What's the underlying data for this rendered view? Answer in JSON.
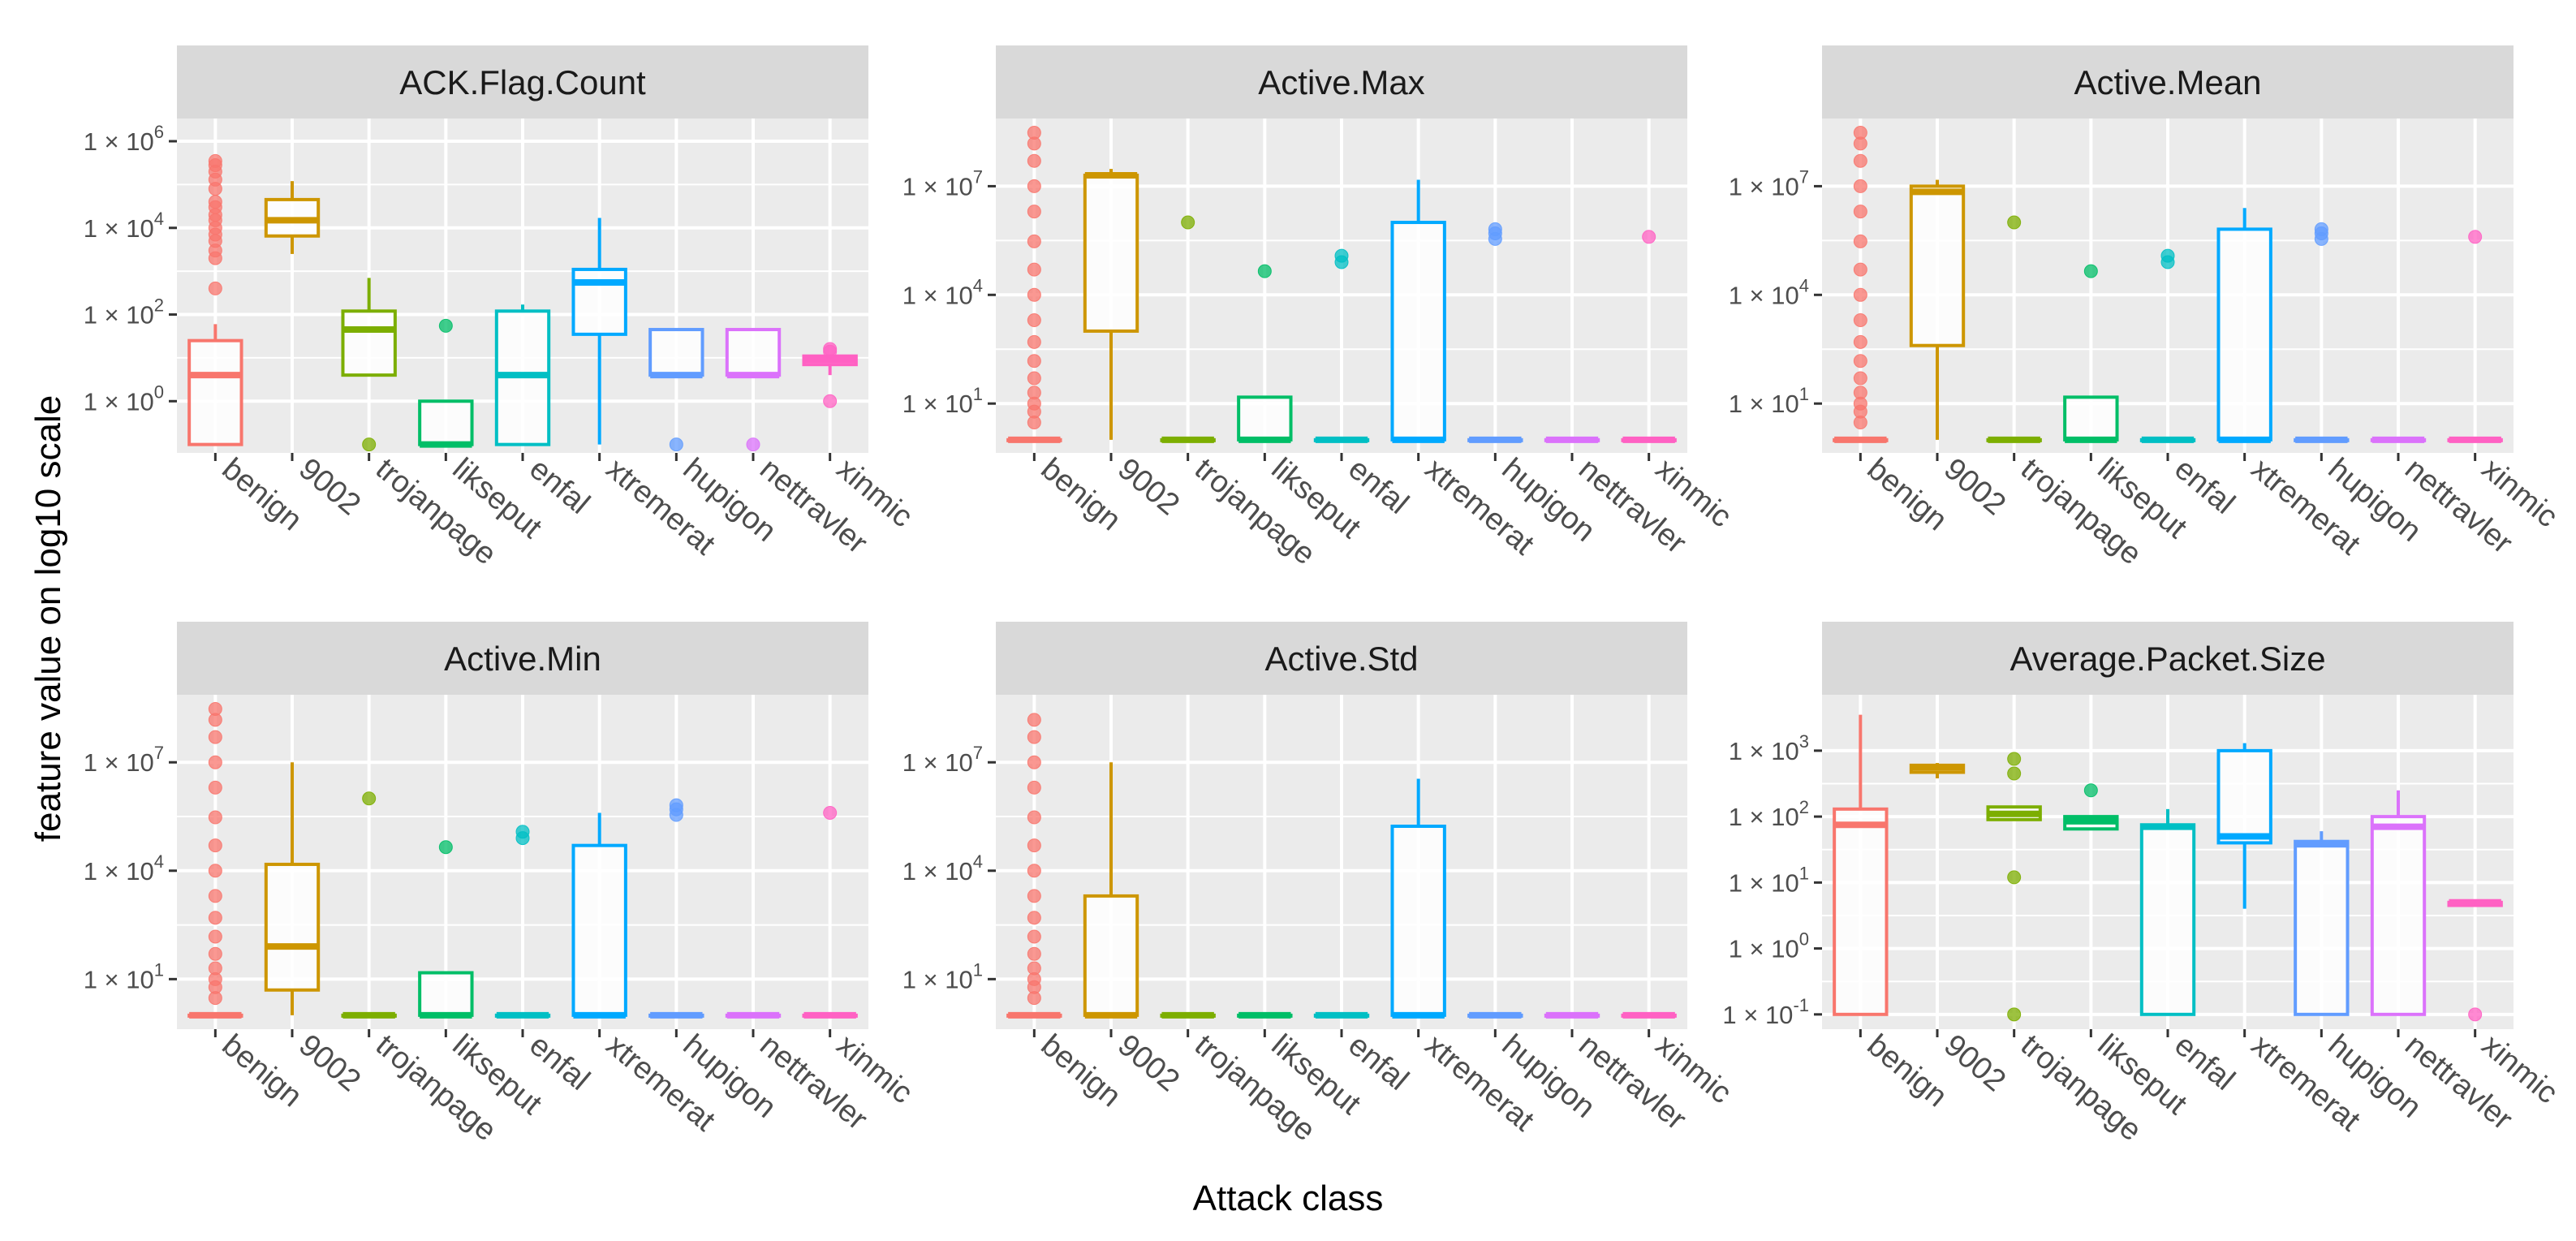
{
  "x_axis_title": "Attack class",
  "y_axis_title": "feature value on log10 scale",
  "colors": {
    "benign": "#F8766D",
    "9002": "#CD9600",
    "trojanpage": "#7CAE00",
    "likseput": "#00BE67",
    "enfal": "#00BFC4",
    "xtremerat": "#00A9FF",
    "hupigon": "#619CFF",
    "nettravler": "#DB72FB",
    "xinmic": "#FF61C3"
  },
  "chart_data": [
    {
      "type": "boxplot",
      "title": "ACK.Flag.Count",
      "y_scale": "log10",
      "ylim_log10": [
        -1.1,
        6.3
      ],
      "y_ticks": [
        {
          "label": "1 × 10",
          "exp": "0",
          "value": 1
        },
        {
          "label": "1 × 10",
          "exp": "2",
          "value": 100
        },
        {
          "label": "1 × 10",
          "exp": "4",
          "value": 10000
        },
        {
          "label": "1 × 10",
          "exp": "6",
          "value": 1000000
        }
      ],
      "categories": [
        "benign",
        "9002",
        "trojanpage",
        "likseput",
        "enfal",
        "xtremerat",
        "hupigon",
        "nettravler",
        "xinmic"
      ],
      "boxes": [
        {
          "class": "benign",
          "min": 0.1,
          "q1": 0.1,
          "median": 4,
          "q3": 25,
          "max": 60,
          "outliers": [
            80000,
            130000,
            200000,
            280000,
            350000,
            10000,
            15000,
            20000,
            30000,
            40000,
            2000,
            3000,
            5000,
            7000,
            400
          ]
        },
        {
          "class": "9002",
          "min": 2500,
          "q1": 6500,
          "median": 15000,
          "q3": 45000,
          "max": 120000,
          "outliers": []
        },
        {
          "class": "trojanpage",
          "min": 4,
          "q1": 4,
          "median": 45,
          "q3": 120,
          "max": 700,
          "outliers": [
            0.1
          ]
        },
        {
          "class": "likseput",
          "min": 0.1,
          "q1": 0.1,
          "median": 0.1,
          "q3": 1,
          "max": 1,
          "outliers": [
            55
          ]
        },
        {
          "class": "enfal",
          "min": 0.1,
          "q1": 0.1,
          "median": 4,
          "q3": 120,
          "max": 170,
          "outliers": []
        },
        {
          "class": "xtremerat",
          "min": 0.1,
          "q1": 35,
          "median": 550,
          "q3": 1100,
          "max": 17000,
          "outliers": []
        },
        {
          "class": "hupigon",
          "min": 4,
          "q1": 4,
          "median": 4,
          "q3": 45,
          "max": 45,
          "outliers": [
            0.1
          ]
        },
        {
          "class": "nettravler",
          "min": 4,
          "q1": 4,
          "median": 4,
          "q3": 45,
          "max": 45,
          "outliers": [
            0.1
          ]
        },
        {
          "class": "xinmic",
          "min": 4,
          "q1": 7,
          "median": 9,
          "q3": 11,
          "max": 12,
          "outliers": [
            1,
            14,
            16
          ]
        }
      ]
    },
    {
      "type": "boxplot",
      "title": "Active.Max",
      "y_scale": "log10",
      "ylim_log10": [
        -0.25,
        8.6
      ],
      "y_ticks": [
        {
          "label": "1 × 10",
          "exp": "1",
          "value": 10
        },
        {
          "label": "1 × 10",
          "exp": "4",
          "value": 10000
        },
        {
          "label": "1 × 10",
          "exp": "7",
          "value": 10000000
        }
      ],
      "categories": [
        "benign",
        "9002",
        "trojanpage",
        "likseput",
        "enfal",
        "xtremerat",
        "hupigon",
        "nettravler",
        "xinmic"
      ],
      "boxes": [
        {
          "class": "benign",
          "min": 1,
          "q1": 1,
          "median": 1,
          "q3": 1,
          "max": 1,
          "outliers": [
            3,
            6,
            10,
            20,
            50,
            150,
            500,
            2000,
            10000,
            50000,
            300000,
            2000000,
            10000000,
            50000000,
            150000000,
            300000000
          ]
        },
        {
          "class": "9002",
          "min": 1,
          "q1": 1000,
          "median": 20000000,
          "q3": 20000000,
          "max": 30000000,
          "outliers": []
        },
        {
          "class": "trojanpage",
          "min": 1,
          "q1": 1,
          "median": 1,
          "q3": 1,
          "max": 1,
          "outliers": [
            1000000
          ]
        },
        {
          "class": "likseput",
          "min": 1,
          "q1": 1,
          "median": 1,
          "q3": 15,
          "max": 15,
          "outliers": [
            45000
          ]
        },
        {
          "class": "enfal",
          "min": 1,
          "q1": 1,
          "median": 1,
          "q3": 1,
          "max": 1,
          "outliers": [
            80000,
            120000
          ]
        },
        {
          "class": "xtremerat",
          "min": 1,
          "q1": 1,
          "median": 1,
          "q3": 1000000,
          "max": 15000000,
          "outliers": []
        },
        {
          "class": "hupigon",
          "min": 1,
          "q1": 1,
          "median": 1,
          "q3": 1,
          "max": 1,
          "outliers": [
            350000,
            500000,
            650000
          ]
        },
        {
          "class": "nettravler",
          "min": 1,
          "q1": 1,
          "median": 1,
          "q3": 1,
          "max": 1,
          "outliers": []
        },
        {
          "class": "xinmic",
          "min": 1,
          "q1": 1,
          "median": 1,
          "q3": 1,
          "max": 1,
          "outliers": [
            400000
          ]
        }
      ]
    },
    {
      "type": "boxplot",
      "title": "Active.Mean",
      "y_scale": "log10",
      "ylim_log10": [
        -0.25,
        8.6
      ],
      "y_ticks": [
        {
          "label": "1 × 10",
          "exp": "1",
          "value": 10
        },
        {
          "label": "1 × 10",
          "exp": "4",
          "value": 10000
        },
        {
          "label": "1 × 10",
          "exp": "7",
          "value": 10000000
        }
      ],
      "categories": [
        "benign",
        "9002",
        "trojanpage",
        "likseput",
        "enfal",
        "xtremerat",
        "hupigon",
        "nettravler",
        "xinmic"
      ],
      "boxes": [
        {
          "class": "benign",
          "min": 1,
          "q1": 1,
          "median": 1,
          "q3": 1,
          "max": 1,
          "outliers": [
            3,
            6,
            10,
            20,
            50,
            150,
            500,
            2000,
            10000,
            50000,
            300000,
            2000000,
            10000000,
            50000000,
            150000000,
            300000000
          ]
        },
        {
          "class": "9002",
          "min": 1,
          "q1": 400,
          "median": 7000000,
          "q3": 10000000,
          "max": 15000000,
          "outliers": []
        },
        {
          "class": "trojanpage",
          "min": 1,
          "q1": 1,
          "median": 1,
          "q3": 1,
          "max": 1,
          "outliers": [
            1000000
          ]
        },
        {
          "class": "likseput",
          "min": 1,
          "q1": 1,
          "median": 1,
          "q3": 15,
          "max": 15,
          "outliers": [
            45000
          ]
        },
        {
          "class": "enfal",
          "min": 1,
          "q1": 1,
          "median": 1,
          "q3": 1,
          "max": 1,
          "outliers": [
            80000,
            120000
          ]
        },
        {
          "class": "xtremerat",
          "min": 1,
          "q1": 1,
          "median": 1,
          "q3": 650000,
          "max": 2500000,
          "outliers": []
        },
        {
          "class": "hupigon",
          "min": 1,
          "q1": 1,
          "median": 1,
          "q3": 1,
          "max": 1,
          "outliers": [
            350000,
            500000,
            650000
          ]
        },
        {
          "class": "nettravler",
          "min": 1,
          "q1": 1,
          "median": 1,
          "q3": 1,
          "max": 1,
          "outliers": []
        },
        {
          "class": "xinmic",
          "min": 1,
          "q1": 1,
          "median": 1,
          "q3": 1,
          "max": 1,
          "outliers": [
            400000
          ]
        }
      ]
    },
    {
      "type": "boxplot",
      "title": "Active.Min",
      "y_scale": "log10",
      "ylim_log10": [
        -0.25,
        8.6
      ],
      "y_ticks": [
        {
          "label": "1 × 10",
          "exp": "1",
          "value": 10
        },
        {
          "label": "1 × 10",
          "exp": "4",
          "value": 10000
        },
        {
          "label": "1 × 10",
          "exp": "7",
          "value": 10000000
        }
      ],
      "categories": [
        "benign",
        "9002",
        "trojanpage",
        "likseput",
        "enfal",
        "xtremerat",
        "hupigon",
        "nettravler",
        "xinmic"
      ],
      "boxes": [
        {
          "class": "benign",
          "min": 1,
          "q1": 1,
          "median": 1,
          "q3": 1,
          "max": 1,
          "outliers": [
            3,
            6,
            10,
            20,
            50,
            150,
            500,
            2000,
            10000,
            50000,
            300000,
            2000000,
            10000000,
            50000000,
            150000000,
            300000000
          ]
        },
        {
          "class": "9002",
          "min": 1,
          "q1": 5,
          "median": 80,
          "q3": 15000,
          "max": 10000000,
          "outliers": []
        },
        {
          "class": "trojanpage",
          "min": 1,
          "q1": 1,
          "median": 1,
          "q3": 1,
          "max": 1,
          "outliers": [
            1000000
          ]
        },
        {
          "class": "likseput",
          "min": 1,
          "q1": 1,
          "median": 1,
          "q3": 15,
          "max": 15,
          "outliers": [
            45000
          ]
        },
        {
          "class": "enfal",
          "min": 1,
          "q1": 1,
          "median": 1,
          "q3": 1,
          "max": 1,
          "outliers": [
            80000,
            120000
          ]
        },
        {
          "class": "xtremerat",
          "min": 1,
          "q1": 1,
          "median": 1,
          "q3": 50000,
          "max": 400000,
          "outliers": []
        },
        {
          "class": "hupigon",
          "min": 1,
          "q1": 1,
          "median": 1,
          "q3": 1,
          "max": 1,
          "outliers": [
            350000,
            500000,
            650000
          ]
        },
        {
          "class": "nettravler",
          "min": 1,
          "q1": 1,
          "median": 1,
          "q3": 1,
          "max": 1,
          "outliers": []
        },
        {
          "class": "xinmic",
          "min": 1,
          "q1": 1,
          "median": 1,
          "q3": 1,
          "max": 1,
          "outliers": [
            400000
          ]
        }
      ]
    },
    {
      "type": "boxplot",
      "title": "Active.Std",
      "y_scale": "log10",
      "ylim_log10": [
        -0.25,
        8.6
      ],
      "y_ticks": [
        {
          "label": "1 × 10",
          "exp": "1",
          "value": 10
        },
        {
          "label": "1 × 10",
          "exp": "4",
          "value": 10000
        },
        {
          "label": "1 × 10",
          "exp": "7",
          "value": 10000000
        }
      ],
      "categories": [
        "benign",
        "9002",
        "trojanpage",
        "likseput",
        "enfal",
        "xtremerat",
        "hupigon",
        "nettravler",
        "xinmic"
      ],
      "boxes": [
        {
          "class": "benign",
          "min": 1,
          "q1": 1,
          "median": 1,
          "q3": 1,
          "max": 1,
          "outliers": [
            3,
            6,
            10,
            20,
            50,
            150,
            500,
            2000,
            10000,
            50000,
            300000,
            2000000,
            10000000,
            50000000,
            150000000
          ]
        },
        {
          "class": "9002",
          "min": 1,
          "q1": 1,
          "median": 1,
          "q3": 2000,
          "max": 10000000,
          "outliers": []
        },
        {
          "class": "trojanpage",
          "min": 1,
          "q1": 1,
          "median": 1,
          "q3": 1,
          "max": 1,
          "outliers": []
        },
        {
          "class": "likseput",
          "min": 1,
          "q1": 1,
          "median": 1,
          "q3": 1,
          "max": 1,
          "outliers": []
        },
        {
          "class": "enfal",
          "min": 1,
          "q1": 1,
          "median": 1,
          "q3": 1,
          "max": 1,
          "outliers": []
        },
        {
          "class": "xtremerat",
          "min": 1,
          "q1": 1,
          "median": 1,
          "q3": 170000,
          "max": 3500000,
          "outliers": []
        },
        {
          "class": "hupigon",
          "min": 1,
          "q1": 1,
          "median": 1,
          "q3": 1,
          "max": 1,
          "outliers": []
        },
        {
          "class": "nettravler",
          "min": 1,
          "q1": 1,
          "median": 1,
          "q3": 1,
          "max": 1,
          "outliers": []
        },
        {
          "class": "xinmic",
          "min": 1,
          "q1": 1,
          "median": 1,
          "q3": 1,
          "max": 1,
          "outliers": []
        }
      ]
    },
    {
      "type": "boxplot",
      "title": "Average.Packet.Size",
      "y_scale": "log10",
      "ylim_log10": [
        -1.15,
        3.7
      ],
      "y_ticks": [
        {
          "label": "1 × 10",
          "exp": "-1",
          "value": 0.1
        },
        {
          "label": "1 × 10",
          "exp": "0",
          "value": 1
        },
        {
          "label": "1 × 10",
          "exp": "1",
          "value": 10
        },
        {
          "label": "1 × 10",
          "exp": "2",
          "value": 100
        },
        {
          "label": "1 × 10",
          "exp": "3",
          "value": 1000
        }
      ],
      "categories": [
        "benign",
        "9002",
        "trojanpage",
        "likseput",
        "enfal",
        "xtremerat",
        "hupigon",
        "nettravler",
        "xinmic"
      ],
      "boxes": [
        {
          "class": "benign",
          "min": 0.1,
          "q1": 0.1,
          "median": 75,
          "q3": 130,
          "max": 3500,
          "outliers": []
        },
        {
          "class": "9002",
          "min": 380,
          "q1": 470,
          "median": 560,
          "q3": 600,
          "max": 650,
          "outliers": []
        },
        {
          "class": "trojanpage",
          "min": 90,
          "q1": 90,
          "median": 110,
          "q3": 140,
          "max": 140,
          "outliers": [
            0.1,
            12,
            450,
            750
          ]
        },
        {
          "class": "likseput",
          "min": 65,
          "q1": 65,
          "median": 85,
          "q3": 100,
          "max": 100,
          "outliers": [
            250
          ]
        },
        {
          "class": "enfal",
          "min": 0.1,
          "q1": 0.1,
          "median": 70,
          "q3": 75,
          "max": 130,
          "outliers": []
        },
        {
          "class": "xtremerat",
          "min": 4,
          "q1": 40,
          "median": 50,
          "q3": 1000,
          "max": 1300,
          "outliers": []
        },
        {
          "class": "hupigon",
          "min": 0.1,
          "q1": 0.1,
          "median": 38,
          "q3": 42,
          "max": 60,
          "outliers": []
        },
        {
          "class": "nettravler",
          "min": 0.1,
          "q1": 0.1,
          "median": 70,
          "q3": 100,
          "max": 250,
          "outliers": []
        },
        {
          "class": "xinmic",
          "min": 4.5,
          "q1": 4.5,
          "median": 5,
          "q3": 5,
          "max": 5,
          "outliers": [
            0.1
          ]
        }
      ]
    }
  ]
}
